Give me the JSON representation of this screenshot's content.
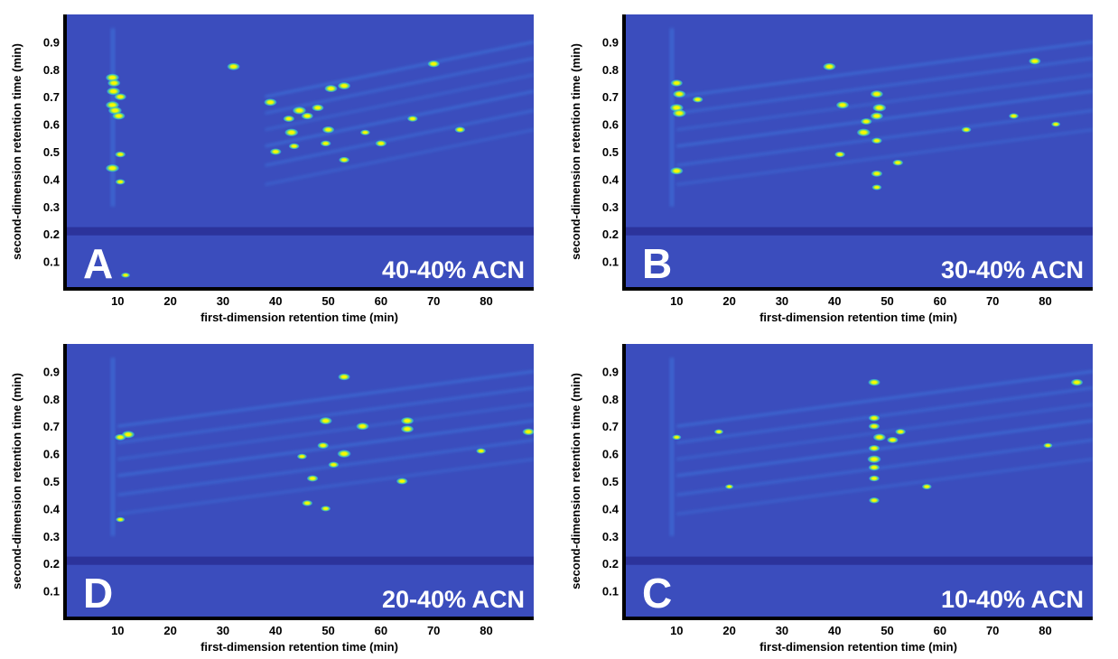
{
  "colors": {
    "background": "#3b4dbd",
    "band": "#2a2f95",
    "streak": "#3f8ff0",
    "peak_low": "#30c0e0",
    "peak_mid": "#80e060",
    "peak_high": "#f8f800",
    "axis": "#000000",
    "label": "#ffffff"
  },
  "chart_data": [
    {
      "type": "heatmap",
      "panel": "A",
      "condition": "40-40% ACN",
      "xlabel": "first-dimension retention time (min)",
      "ylabel": "second-dimension retention time (min)",
      "xlim": [
        0,
        89
      ],
      "ylim": [
        0,
        1.0
      ],
      "xticks": [
        "10",
        "20",
        "30",
        "40",
        "50",
        "60",
        "70",
        "80"
      ],
      "yticks": [
        "0.1",
        "0.2",
        "0.3",
        "0.4",
        "0.5",
        "0.6",
        "0.7",
        "0.8",
        "0.9"
      ],
      "grid": false,
      "peaks": [
        {
          "x": 9.0,
          "y": 0.77,
          "i": 1.0
        },
        {
          "x": 9.3,
          "y": 0.75,
          "i": 0.9
        },
        {
          "x": 9.2,
          "y": 0.72,
          "i": 1.0
        },
        {
          "x": 10.5,
          "y": 0.7,
          "i": 0.8
        },
        {
          "x": 9.0,
          "y": 0.67,
          "i": 1.0
        },
        {
          "x": 9.5,
          "y": 0.65,
          "i": 1.0
        },
        {
          "x": 10.2,
          "y": 0.63,
          "i": 0.9
        },
        {
          "x": 9.0,
          "y": 0.44,
          "i": 1.0
        },
        {
          "x": 10.5,
          "y": 0.49,
          "i": 0.6
        },
        {
          "x": 10.5,
          "y": 0.39,
          "i": 0.5
        },
        {
          "x": 32.0,
          "y": 0.81,
          "i": 0.9
        },
        {
          "x": 70.0,
          "y": 0.82,
          "i": 0.8
        },
        {
          "x": 39.0,
          "y": 0.68,
          "i": 0.9
        },
        {
          "x": 43.0,
          "y": 0.57,
          "i": 1.0
        },
        {
          "x": 44.5,
          "y": 0.65,
          "i": 1.0
        },
        {
          "x": 46.0,
          "y": 0.63,
          "i": 0.8
        },
        {
          "x": 42.5,
          "y": 0.62,
          "i": 0.7
        },
        {
          "x": 40.0,
          "y": 0.5,
          "i": 0.7
        },
        {
          "x": 43.5,
          "y": 0.52,
          "i": 0.6
        },
        {
          "x": 48.0,
          "y": 0.66,
          "i": 0.8
        },
        {
          "x": 50.5,
          "y": 0.73,
          "i": 0.9
        },
        {
          "x": 53.0,
          "y": 0.74,
          "i": 0.9
        },
        {
          "x": 50.0,
          "y": 0.58,
          "i": 0.8
        },
        {
          "x": 49.5,
          "y": 0.53,
          "i": 0.6
        },
        {
          "x": 53.0,
          "y": 0.47,
          "i": 0.6
        },
        {
          "x": 57.0,
          "y": 0.57,
          "i": 0.5
        },
        {
          "x": 60.0,
          "y": 0.53,
          "i": 0.7
        },
        {
          "x": 66.0,
          "y": 0.62,
          "i": 0.6
        },
        {
          "x": 75.0,
          "y": 0.58,
          "i": 0.6
        },
        {
          "x": 11.5,
          "y": 0.05,
          "i": 0.4
        }
      ]
    },
    {
      "type": "heatmap",
      "panel": "B",
      "condition": "30-40% ACN",
      "xlabel": "first-dimension retention time (min)",
      "ylabel": "second-dimension retention time (min)",
      "xlim": [
        0,
        89
      ],
      "ylim": [
        0,
        1.0
      ],
      "xticks": [
        "10",
        "20",
        "30",
        "40",
        "50",
        "60",
        "70",
        "80"
      ],
      "yticks": [
        "0.1",
        "0.2",
        "0.3",
        "0.4",
        "0.5",
        "0.6",
        "0.7",
        "0.8",
        "0.9"
      ],
      "grid": false,
      "peaks": [
        {
          "x": 10.0,
          "y": 0.75,
          "i": 0.8
        },
        {
          "x": 10.5,
          "y": 0.71,
          "i": 0.9
        },
        {
          "x": 10.0,
          "y": 0.66,
          "i": 1.0
        },
        {
          "x": 10.5,
          "y": 0.64,
          "i": 1.0
        },
        {
          "x": 14.0,
          "y": 0.69,
          "i": 0.6
        },
        {
          "x": 10.0,
          "y": 0.43,
          "i": 0.9
        },
        {
          "x": 39.0,
          "y": 0.81,
          "i": 0.9
        },
        {
          "x": 78.0,
          "y": 0.83,
          "i": 0.8
        },
        {
          "x": 41.5,
          "y": 0.67,
          "i": 0.9
        },
        {
          "x": 45.5,
          "y": 0.57,
          "i": 1.0
        },
        {
          "x": 46.0,
          "y": 0.61,
          "i": 0.7
        },
        {
          "x": 48.0,
          "y": 0.71,
          "i": 0.9
        },
        {
          "x": 48.5,
          "y": 0.66,
          "i": 1.0
        },
        {
          "x": 48.0,
          "y": 0.63,
          "i": 0.9
        },
        {
          "x": 48.0,
          "y": 0.54,
          "i": 0.6
        },
        {
          "x": 48.0,
          "y": 0.42,
          "i": 0.7
        },
        {
          "x": 41.0,
          "y": 0.49,
          "i": 0.6
        },
        {
          "x": 52.0,
          "y": 0.46,
          "i": 0.6
        },
        {
          "x": 65.0,
          "y": 0.58,
          "i": 0.5
        },
        {
          "x": 74.0,
          "y": 0.63,
          "i": 0.5
        },
        {
          "x": 82.0,
          "y": 0.6,
          "i": 0.4
        },
        {
          "x": 48.0,
          "y": 0.37,
          "i": 0.5
        }
      ]
    },
    {
      "type": "heatmap",
      "panel": "D",
      "condition": "20-40% ACN",
      "xlabel": "first-dimension retention time (min)",
      "ylabel": "second-dimension retention time (min)",
      "xlim": [
        0,
        89
      ],
      "ylim": [
        0,
        1.0
      ],
      "xticks": [
        "10",
        "20",
        "30",
        "40",
        "50",
        "60",
        "70",
        "80"
      ],
      "yticks": [
        "0.1",
        "0.2",
        "0.3",
        "0.4",
        "0.5",
        "0.6",
        "0.7",
        "0.8",
        "0.9"
      ],
      "grid": false,
      "peaks": [
        {
          "x": 12.0,
          "y": 0.67,
          "i": 0.9
        },
        {
          "x": 10.5,
          "y": 0.66,
          "i": 0.7
        },
        {
          "x": 53.0,
          "y": 0.88,
          "i": 0.8
        },
        {
          "x": 49.5,
          "y": 0.72,
          "i": 0.9
        },
        {
          "x": 56.5,
          "y": 0.7,
          "i": 0.9
        },
        {
          "x": 53.0,
          "y": 0.6,
          "i": 1.0
        },
        {
          "x": 49.0,
          "y": 0.63,
          "i": 0.7
        },
        {
          "x": 51.0,
          "y": 0.56,
          "i": 0.6
        },
        {
          "x": 47.0,
          "y": 0.51,
          "i": 0.7
        },
        {
          "x": 46.0,
          "y": 0.42,
          "i": 0.6
        },
        {
          "x": 49.5,
          "y": 0.4,
          "i": 0.5
        },
        {
          "x": 65.0,
          "y": 0.72,
          "i": 0.9
        },
        {
          "x": 65.0,
          "y": 0.69,
          "i": 0.9
        },
        {
          "x": 64.0,
          "y": 0.5,
          "i": 0.7
        },
        {
          "x": 79.0,
          "y": 0.61,
          "i": 0.5
        },
        {
          "x": 88.0,
          "y": 0.68,
          "i": 0.8
        },
        {
          "x": 10.5,
          "y": 0.36,
          "i": 0.4
        },
        {
          "x": 45.0,
          "y": 0.59,
          "i": 0.5
        }
      ]
    },
    {
      "type": "heatmap",
      "panel": "C",
      "condition": "10-40% ACN",
      "xlabel": "first-dimension retention time (min)",
      "ylabel": "second-dimension retention time (min)",
      "xlim": [
        0,
        89
      ],
      "ylim": [
        0,
        1.0
      ],
      "xticks": [
        "10",
        "20",
        "30",
        "40",
        "50",
        "60",
        "70",
        "80"
      ],
      "yticks": [
        "0.1",
        "0.2",
        "0.3",
        "0.4",
        "0.5",
        "0.6",
        "0.7",
        "0.8",
        "0.9"
      ],
      "grid": false,
      "peaks": [
        {
          "x": 47.5,
          "y": 0.86,
          "i": 0.8
        },
        {
          "x": 47.5,
          "y": 0.73,
          "i": 0.7
        },
        {
          "x": 47.5,
          "y": 0.7,
          "i": 0.7
        },
        {
          "x": 48.5,
          "y": 0.66,
          "i": 0.9
        },
        {
          "x": 47.5,
          "y": 0.62,
          "i": 0.7
        },
        {
          "x": 47.5,
          "y": 0.58,
          "i": 1.0
        },
        {
          "x": 47.5,
          "y": 0.55,
          "i": 0.7
        },
        {
          "x": 47.5,
          "y": 0.51,
          "i": 0.6
        },
        {
          "x": 47.5,
          "y": 0.43,
          "i": 0.6
        },
        {
          "x": 51.0,
          "y": 0.65,
          "i": 0.7
        },
        {
          "x": 52.5,
          "y": 0.68,
          "i": 0.6
        },
        {
          "x": 57.5,
          "y": 0.48,
          "i": 0.5
        },
        {
          "x": 86.0,
          "y": 0.86,
          "i": 0.8
        },
        {
          "x": 10.0,
          "y": 0.66,
          "i": 0.4
        },
        {
          "x": 18.0,
          "y": 0.68,
          "i": 0.4
        },
        {
          "x": 80.5,
          "y": 0.63,
          "i": 0.4
        },
        {
          "x": 20.0,
          "y": 0.48,
          "i": 0.3
        }
      ]
    }
  ]
}
